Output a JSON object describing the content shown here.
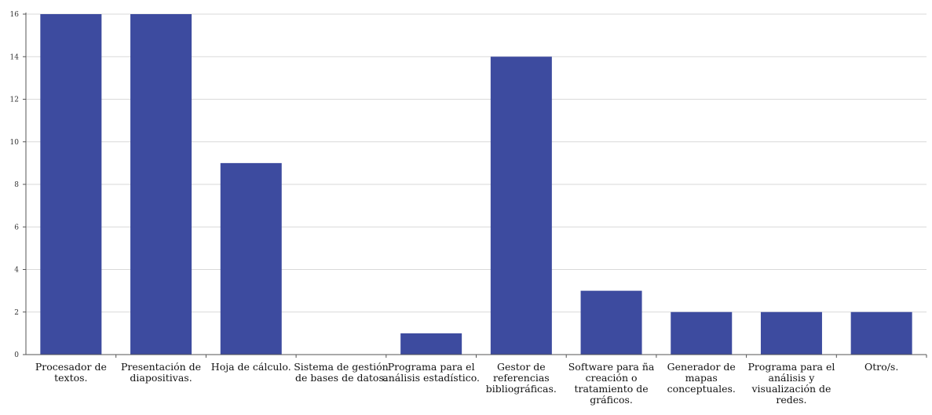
{
  "chart_data": {
    "type": "bar",
    "categories": [
      [
        "Procesador de",
        "textos."
      ],
      [
        "Presentación de",
        "diapositivas."
      ],
      [
        "Hoja de cálculo."
      ],
      [
        "Sistema de gestión",
        "de bases de datos."
      ],
      [
        "Programa para el",
        "análisis estadístico."
      ],
      [
        "Gestor de",
        "referencias",
        "bibliográficas."
      ],
      [
        "Software para ña",
        "creación o",
        "tratamiento de",
        "gráficos."
      ],
      [
        "Generador de",
        "mapas",
        "conceptuales."
      ],
      [
        "Programa para el",
        "análisis y",
        "visualización de",
        "redes."
      ],
      [
        "Otro/s."
      ]
    ],
    "values": [
      16,
      16,
      9,
      0,
      1,
      14,
      3,
      2,
      2,
      2
    ],
    "yticks": [
      0,
      2,
      4,
      6,
      8,
      10,
      12,
      14,
      16
    ],
    "ylim": [
      0,
      16
    ],
    "grid": true,
    "bar_color": "#3d4b9f",
    "grid_color": "#d9d9d9",
    "axis_color": "#555555",
    "title": "",
    "xlabel": "",
    "ylabel": ""
  }
}
